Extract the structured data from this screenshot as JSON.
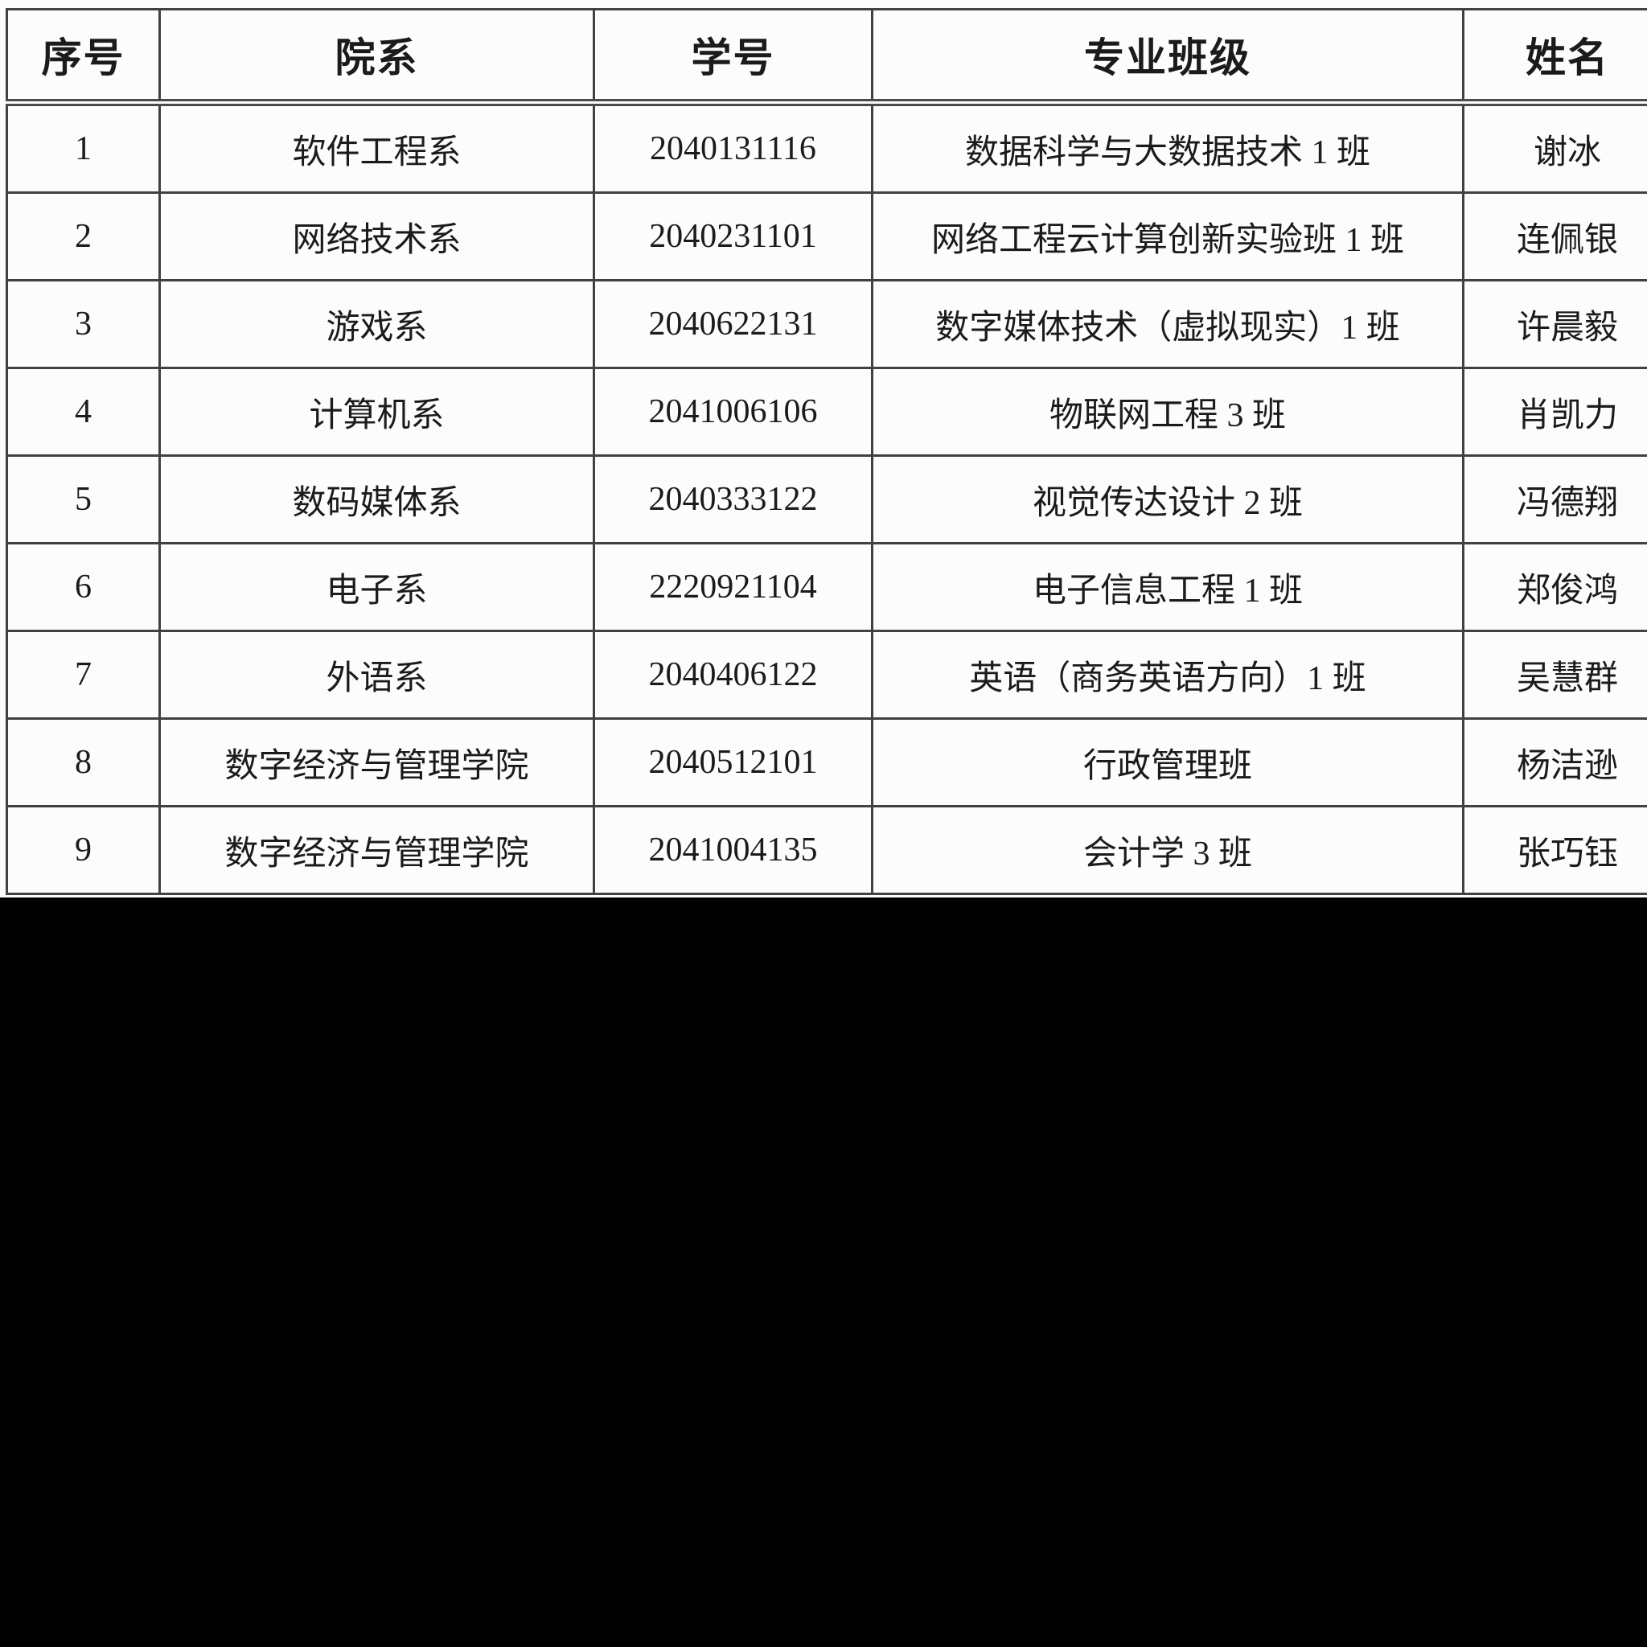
{
  "table": {
    "columns": [
      {
        "key": "index",
        "label": "序号"
      },
      {
        "key": "department",
        "label": "院系"
      },
      {
        "key": "student_id",
        "label": "学号"
      },
      {
        "key": "major_class",
        "label": "专业班级"
      },
      {
        "key": "name",
        "label": "姓名"
      }
    ],
    "rows": [
      [
        "1",
        "软件工程系",
        "2040131116",
        "数据科学与大数据技术 1 班",
        "谢冰"
      ],
      [
        "2",
        "网络技术系",
        "2040231101",
        "网络工程云计算创新实验班 1 班",
        "连佩银"
      ],
      [
        "3",
        "游戏系",
        "2040622131",
        "数字媒体技术（虚拟现实）1 班",
        "许晨毅"
      ],
      [
        "4",
        "计算机系",
        "2041006106",
        "物联网工程 3 班",
        "肖凯力"
      ],
      [
        "5",
        "数码媒体系",
        "2040333122",
        "视觉传达设计 2 班",
        "冯德翔"
      ],
      [
        "6",
        "电子系",
        "2220921104",
        "电子信息工程 1 班",
        "郑俊鸿"
      ],
      [
        "7",
        "外语系",
        "2040406122",
        "英语（商务英语方向）1 班",
        "吴慧群"
      ],
      [
        "8",
        "数字经济与管理学院",
        "2040512101",
        "行政管理班",
        "杨洁逊"
      ],
      [
        "9",
        "数字经济与管理学院",
        "2041004135",
        "会计学 3 班",
        "张巧钰"
      ]
    ]
  },
  "colors": {
    "page_background": "#000000",
    "sheet_background": "#fcfcfc",
    "table_border": "#414141",
    "text": "#1b1b1b"
  }
}
